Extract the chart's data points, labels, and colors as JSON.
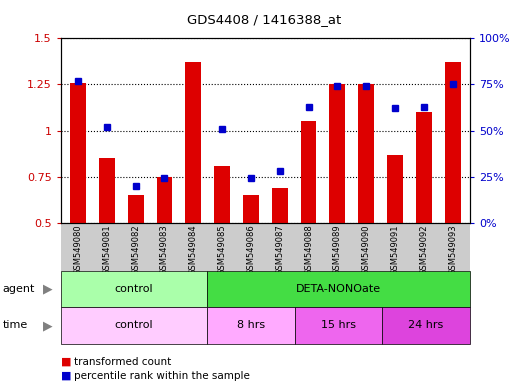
{
  "title": "GDS4408 / 1416388_at",
  "samples": [
    "GSM549080",
    "GSM549081",
    "GSM549082",
    "GSM549083",
    "GSM549084",
    "GSM549085",
    "GSM549086",
    "GSM549087",
    "GSM549088",
    "GSM549089",
    "GSM549090",
    "GSM549091",
    "GSM549092",
    "GSM549093"
  ],
  "red_values": [
    1.26,
    0.85,
    0.65,
    0.75,
    1.37,
    0.81,
    0.65,
    0.69,
    1.05,
    1.25,
    1.25,
    0.87,
    1.1,
    1.37
  ],
  "blue_values": [
    0.77,
    0.52,
    0.2,
    0.24,
    null,
    0.51,
    0.24,
    0.28,
    0.63,
    0.74,
    0.74,
    0.62,
    0.63,
    0.75
  ],
  "ylim_left": [
    0.5,
    1.5
  ],
  "ylim_right": [
    0,
    100
  ],
  "yticks_left": [
    0.5,
    0.75,
    1.0,
    1.25,
    1.5
  ],
  "yticks_right": [
    0,
    25,
    50,
    75,
    100
  ],
  "ytick_labels_left": [
    "0.5",
    "0.75",
    "1",
    "1.25",
    "1.5"
  ],
  "ytick_labels_right": [
    "0%",
    "25%",
    "50%",
    "75%",
    "100%"
  ],
  "agent_groups": [
    {
      "label": "control",
      "start": 0,
      "end": 5,
      "color": "#aaffaa"
    },
    {
      "label": "DETA-NONOate",
      "start": 5,
      "end": 14,
      "color": "#44dd44"
    }
  ],
  "time_groups": [
    {
      "label": "control",
      "start": 0,
      "end": 5,
      "color": "#ffccff"
    },
    {
      "label": "8 hrs",
      "start": 5,
      "end": 8,
      "color": "#ffaaff"
    },
    {
      "label": "15 hrs",
      "start": 8,
      "end": 11,
      "color": "#ee66ee"
    },
    {
      "label": "24 hrs",
      "start": 11,
      "end": 14,
      "color": "#dd44dd"
    }
  ],
  "bar_color": "#dd0000",
  "dot_color": "#0000cc",
  "background_color": "#ffffff",
  "tick_label_color_left": "#cc0000",
  "tick_label_color_right": "#0000cc",
  "sample_bg_color": "#cccccc"
}
